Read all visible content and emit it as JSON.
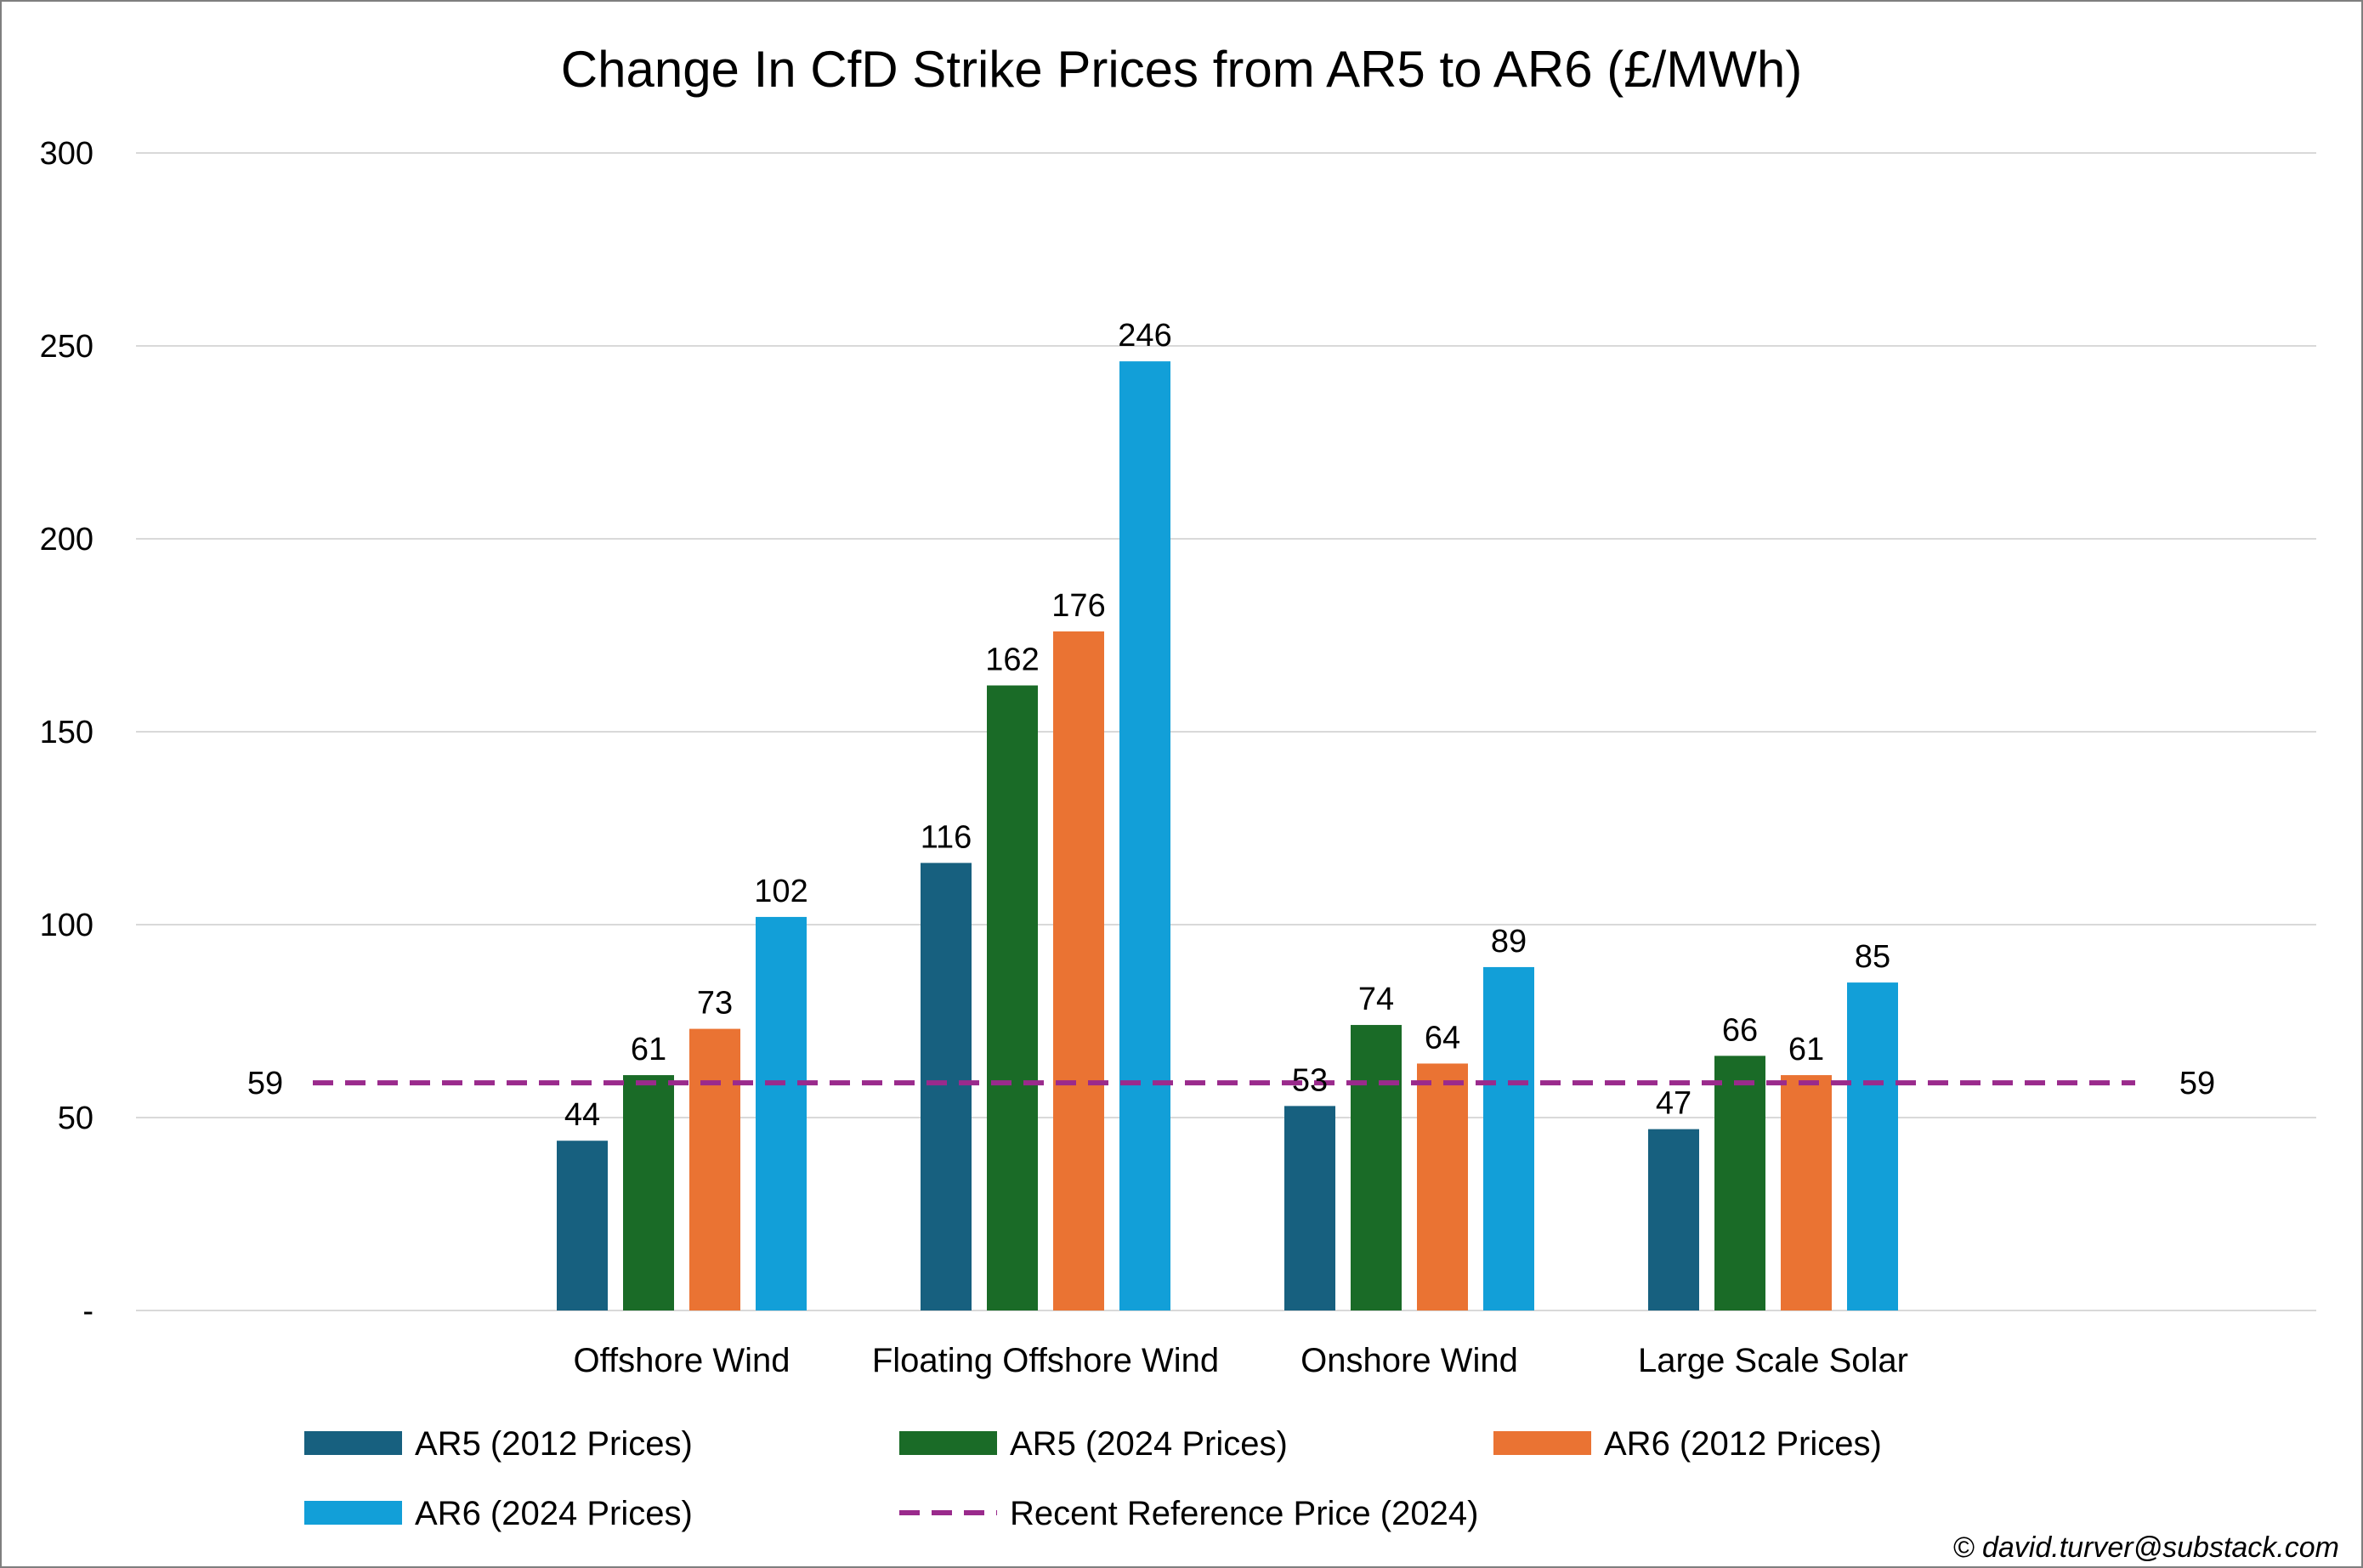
{
  "chart_data": {
    "type": "bar",
    "title": "Change In CfD Strike Prices from AR5 to AR6 (£/MWh)",
    "xlabel": "",
    "ylabel": "",
    "ylim": [
      0,
      300
    ],
    "y_ticks": [
      {
        "value": 0,
        "label": "-"
      },
      {
        "value": 50,
        "label": "50"
      },
      {
        "value": 100,
        "label": "100"
      },
      {
        "value": 150,
        "label": "150"
      },
      {
        "value": 200,
        "label": "200"
      },
      {
        "value": 250,
        "label": "250"
      },
      {
        "value": 300,
        "label": "300"
      }
    ],
    "grid": true,
    "legend_position": "bottom",
    "categories": [
      "Offshore Wind",
      "Floating Offshore Wind",
      "Onshore Wind",
      "Large Scale Solar"
    ],
    "series": [
      {
        "name": "AR5 (2012 Prices)",
        "color": "#17607f",
        "values": [
          44,
          116,
          53,
          47
        ]
      },
      {
        "name": "AR5 (2024 Prices)",
        "color": "#1a6b27",
        "values": [
          61,
          162,
          74,
          66
        ]
      },
      {
        "name": "AR6 (2012 Prices)",
        "color": "#ea7333",
        "values": [
          73,
          176,
          64,
          61
        ]
      },
      {
        "name": "AR6 (2024 Prices)",
        "color": "#129fd8",
        "values": [
          102,
          246,
          89,
          85
        ]
      }
    ],
    "reference_line": {
      "name": "Recent Reference Price (2024)",
      "value": 59,
      "label": "59",
      "color": "#9a2a8c",
      "style": "dashed"
    }
  },
  "credit": "© david.turver@substack.com"
}
